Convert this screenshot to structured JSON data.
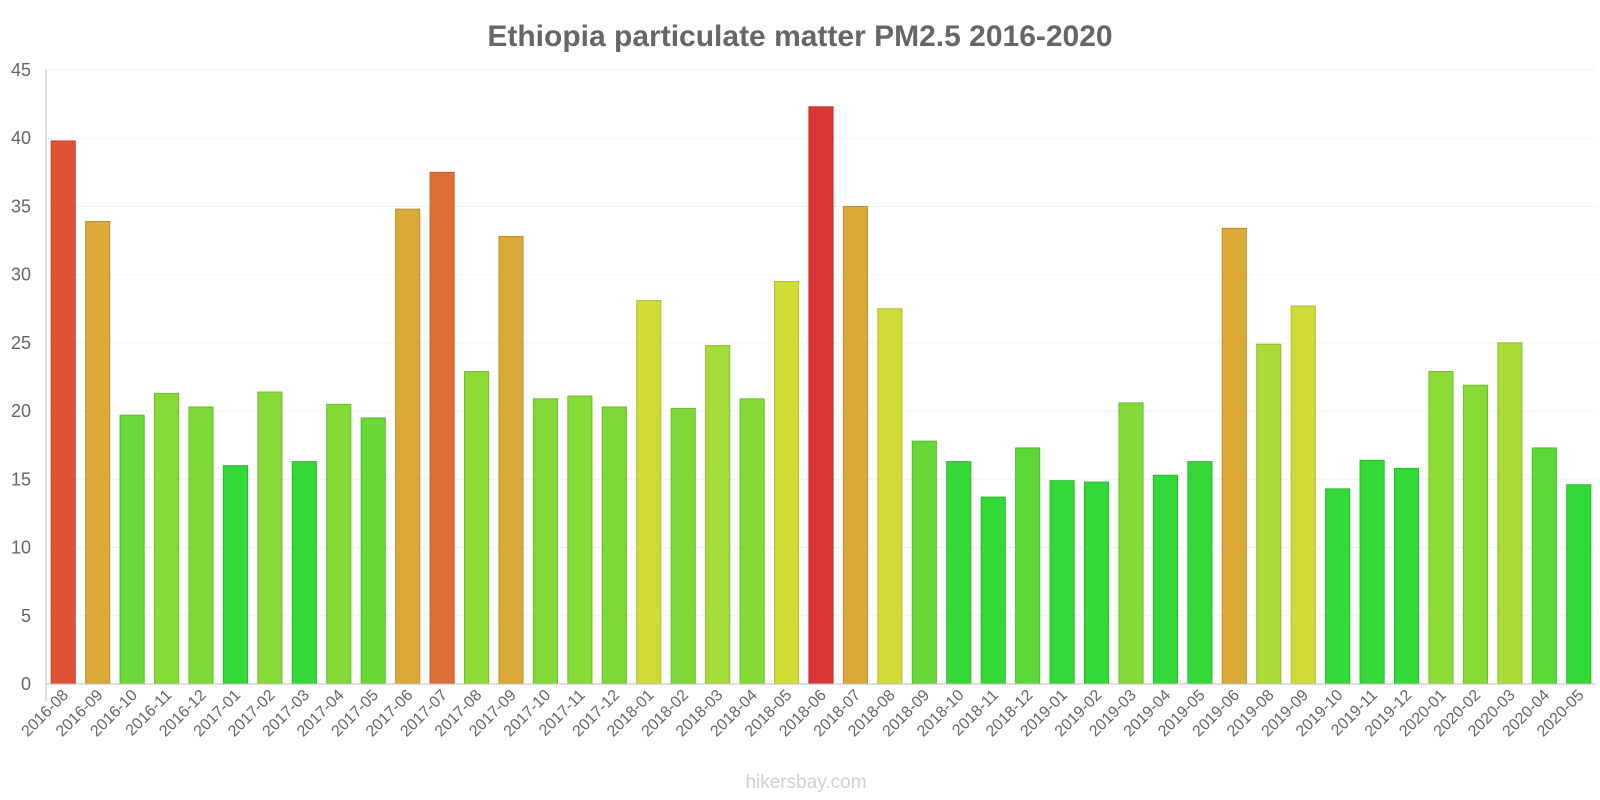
{
  "chart_data": {
    "type": "bar",
    "title": "Ethiopia particulate matter PM2.5 2016-2020",
    "xlabel": "",
    "ylabel": "",
    "ylim": [
      0,
      45
    ],
    "yticks": [
      0,
      5,
      10,
      15,
      20,
      25,
      30,
      35,
      40,
      45
    ],
    "grid": true,
    "legend": "none",
    "categories": [
      "2016-08",
      "2016-09",
      "2016-10",
      "2016-11",
      "2016-12",
      "2017-01",
      "2017-02",
      "2017-03",
      "2017-04",
      "2017-05",
      "2017-06",
      "2017-07",
      "2017-08",
      "2017-09",
      "2017-10",
      "2017-11",
      "2017-12",
      "2018-01",
      "2018-02",
      "2018-03",
      "2018-04",
      "2018-05",
      "2018-06",
      "2018-07",
      "2018-08",
      "2018-09",
      "2018-10",
      "2018-11",
      "2018-12",
      "2019-01",
      "2019-02",
      "2019-03",
      "2019-04",
      "2019-05",
      "2019-06",
      "2019-08",
      "2019-09",
      "2019-10",
      "2019-11",
      "2019-12",
      "2020-01",
      "2020-02",
      "2020-03",
      "2020-04",
      "2020-05"
    ],
    "values": [
      39.8,
      33.9,
      19.7,
      21.3,
      20.3,
      16.0,
      21.4,
      16.3,
      20.5,
      19.5,
      34.8,
      37.5,
      22.9,
      32.8,
      20.9,
      21.1,
      20.3,
      28.1,
      20.2,
      24.8,
      20.9,
      29.5,
      42.3,
      35.0,
      27.5,
      17.8,
      16.3,
      13.7,
      17.3,
      14.9,
      14.8,
      20.6,
      15.3,
      16.3,
      33.4,
      24.9,
      27.7,
      14.3,
      16.4,
      15.8,
      22.9,
      21.9,
      25.0,
      17.3,
      14.6
    ],
    "colors": [
      "#e15237",
      "#dba937",
      "#6ad837",
      "#86db37",
      "#7cd937",
      "#33d937",
      "#86db37",
      "#35d937",
      "#83da37",
      "#69d837",
      "#dba937",
      "#e06e37",
      "#8ddb37",
      "#dba937",
      "#83da37",
      "#86db37",
      "#7cd937",
      "#cfdc37",
      "#7cd937",
      "#a5db37",
      "#83da37",
      "#cfdc37",
      "#dc3737",
      "#dba937",
      "#cfdc37",
      "#66d837",
      "#35d937",
      "#33d937",
      "#5cd837",
      "#33d937",
      "#33d937",
      "#83da37",
      "#33d937",
      "#35d937",
      "#dba937",
      "#aadb37",
      "#cfdc37",
      "#33d937",
      "#35d937",
      "#33d937",
      "#8ddb37",
      "#86db37",
      "#aadb37",
      "#5cd837",
      "#33d937"
    ]
  },
  "watermark": "hikersbay.com"
}
